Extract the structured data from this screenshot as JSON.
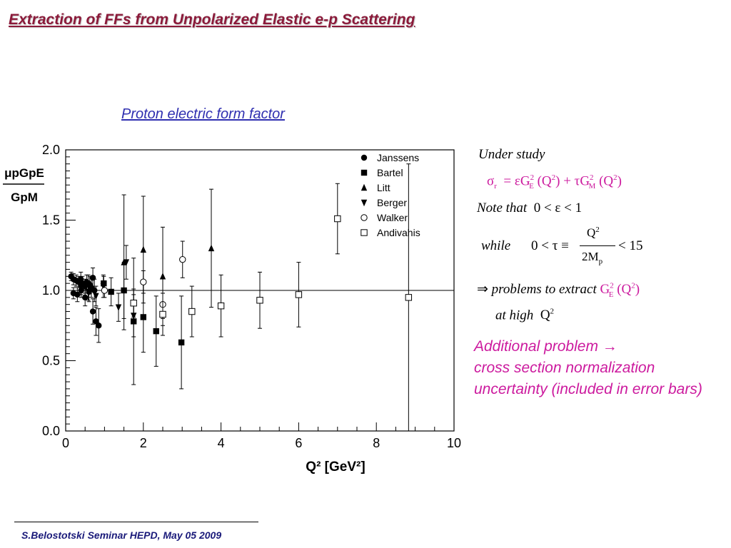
{
  "slide": {
    "title": "Extraction of FFs from  Unpolarized Elastic e-p Scattering",
    "chart_title": "Proton electric form factor",
    "footer": "S.Belostotski  Seminar HEPD, May 05 2009"
  },
  "annotations": {
    "under_study": "Under study",
    "note_that": "Note that",
    "while": "while",
    "problems": "problems to extract",
    "at_high": "at high",
    "additional_problem": "Additional problem   →",
    "additional_detail": "cross section normalization uncertainty (included in error bars)"
  },
  "colors": {
    "title": "#8B1A3A",
    "chart_title": "#2f2fb0",
    "magenta": "#cc1a9e",
    "footer": "#1a1a7a"
  },
  "chart_data": {
    "type": "scatter",
    "xlabel": "Q² [GeV²]",
    "ylabel": "μpGpE / GpM",
    "xlim": [
      0,
      10
    ],
    "ylim": [
      0,
      2
    ],
    "xticks": [
      0,
      2,
      4,
      6,
      8,
      10
    ],
    "yticks": [
      "0.0",
      "0.5",
      "1.0",
      "1.5",
      "2.0"
    ],
    "reference_line": 1.0,
    "legend_position": "top-right",
    "series": [
      {
        "name": "Janssens",
        "marker": "filled-circle",
        "x": [
          0.14,
          0.2,
          0.27,
          0.33,
          0.39,
          0.43,
          0.5,
          0.54,
          0.58,
          0.62,
          0.66,
          0.7,
          0.74,
          0.78,
          0.85,
          0.2,
          0.3,
          0.4,
          0.5,
          0.6,
          0.7
        ],
        "y": [
          1.1,
          1.08,
          1.07,
          1.06,
          1.08,
          1.05,
          1.03,
          1.06,
          1.05,
          1.04,
          1.02,
          1.09,
          1.0,
          0.78,
          0.75,
          0.98,
          0.97,
          1.0,
          0.95,
          0.99,
          0.85
        ],
        "err": [
          0.03,
          0.04,
          0.04,
          0.04,
          0.05,
          0.05,
          0.05,
          0.05,
          0.06,
          0.06,
          0.07,
          0.07,
          0.08,
          0.1,
          0.12,
          0.04,
          0.05,
          0.05,
          0.06,
          0.07,
          0.09
        ]
      },
      {
        "name": "Bartel",
        "marker": "filled-square",
        "x": [
          0.98,
          1.17,
          1.5,
          1.75,
          2.0,
          2.33,
          2.98
        ],
        "y": [
          1.05,
          0.99,
          1.0,
          0.78,
          0.81,
          0.71,
          0.63
        ],
        "err": [
          0.05,
          0.1,
          0.2,
          0.45,
          0.25,
          0.25,
          0.33
        ]
      },
      {
        "name": "Litt",
        "marker": "filled-triangle-up",
        "x": [
          1.5,
          2.0,
          2.5,
          3.75
        ],
        "y": [
          1.2,
          1.29,
          1.1,
          1.3
        ],
        "err": [
          0.48,
          0.38,
          0.35,
          0.42
        ]
      },
      {
        "name": "Berger",
        "marker": "filled-triangle-down",
        "x": [
          0.39,
          0.58,
          0.78,
          0.97,
          1.36,
          1.56,
          1.75
        ],
        "y": [
          1.02,
          0.99,
          0.96,
          1.03,
          0.88,
          1.2,
          0.82
        ],
        "err": [
          0.05,
          0.06,
          0.07,
          0.08,
          0.1,
          0.12,
          0.15
        ]
      },
      {
        "name": "Walker",
        "marker": "open-circle",
        "x": [
          1.0,
          2.0,
          2.5,
          3.01
        ],
        "y": [
          1.0,
          1.06,
          0.9,
          1.22
        ],
        "err": [
          0.05,
          0.08,
          0.1,
          0.13
        ]
      },
      {
        "name": "Andivahis",
        "marker": "open-square",
        "x": [
          1.75,
          2.5,
          3.25,
          4.0,
          5.0,
          6.0,
          7.0,
          8.83
        ],
        "y": [
          0.91,
          0.83,
          0.85,
          0.89,
          0.93,
          0.97,
          1.51,
          0.95
        ],
        "err": [
          0.1,
          0.15,
          0.18,
          0.22,
          0.2,
          0.23,
          0.25,
          0.95
        ]
      }
    ]
  }
}
